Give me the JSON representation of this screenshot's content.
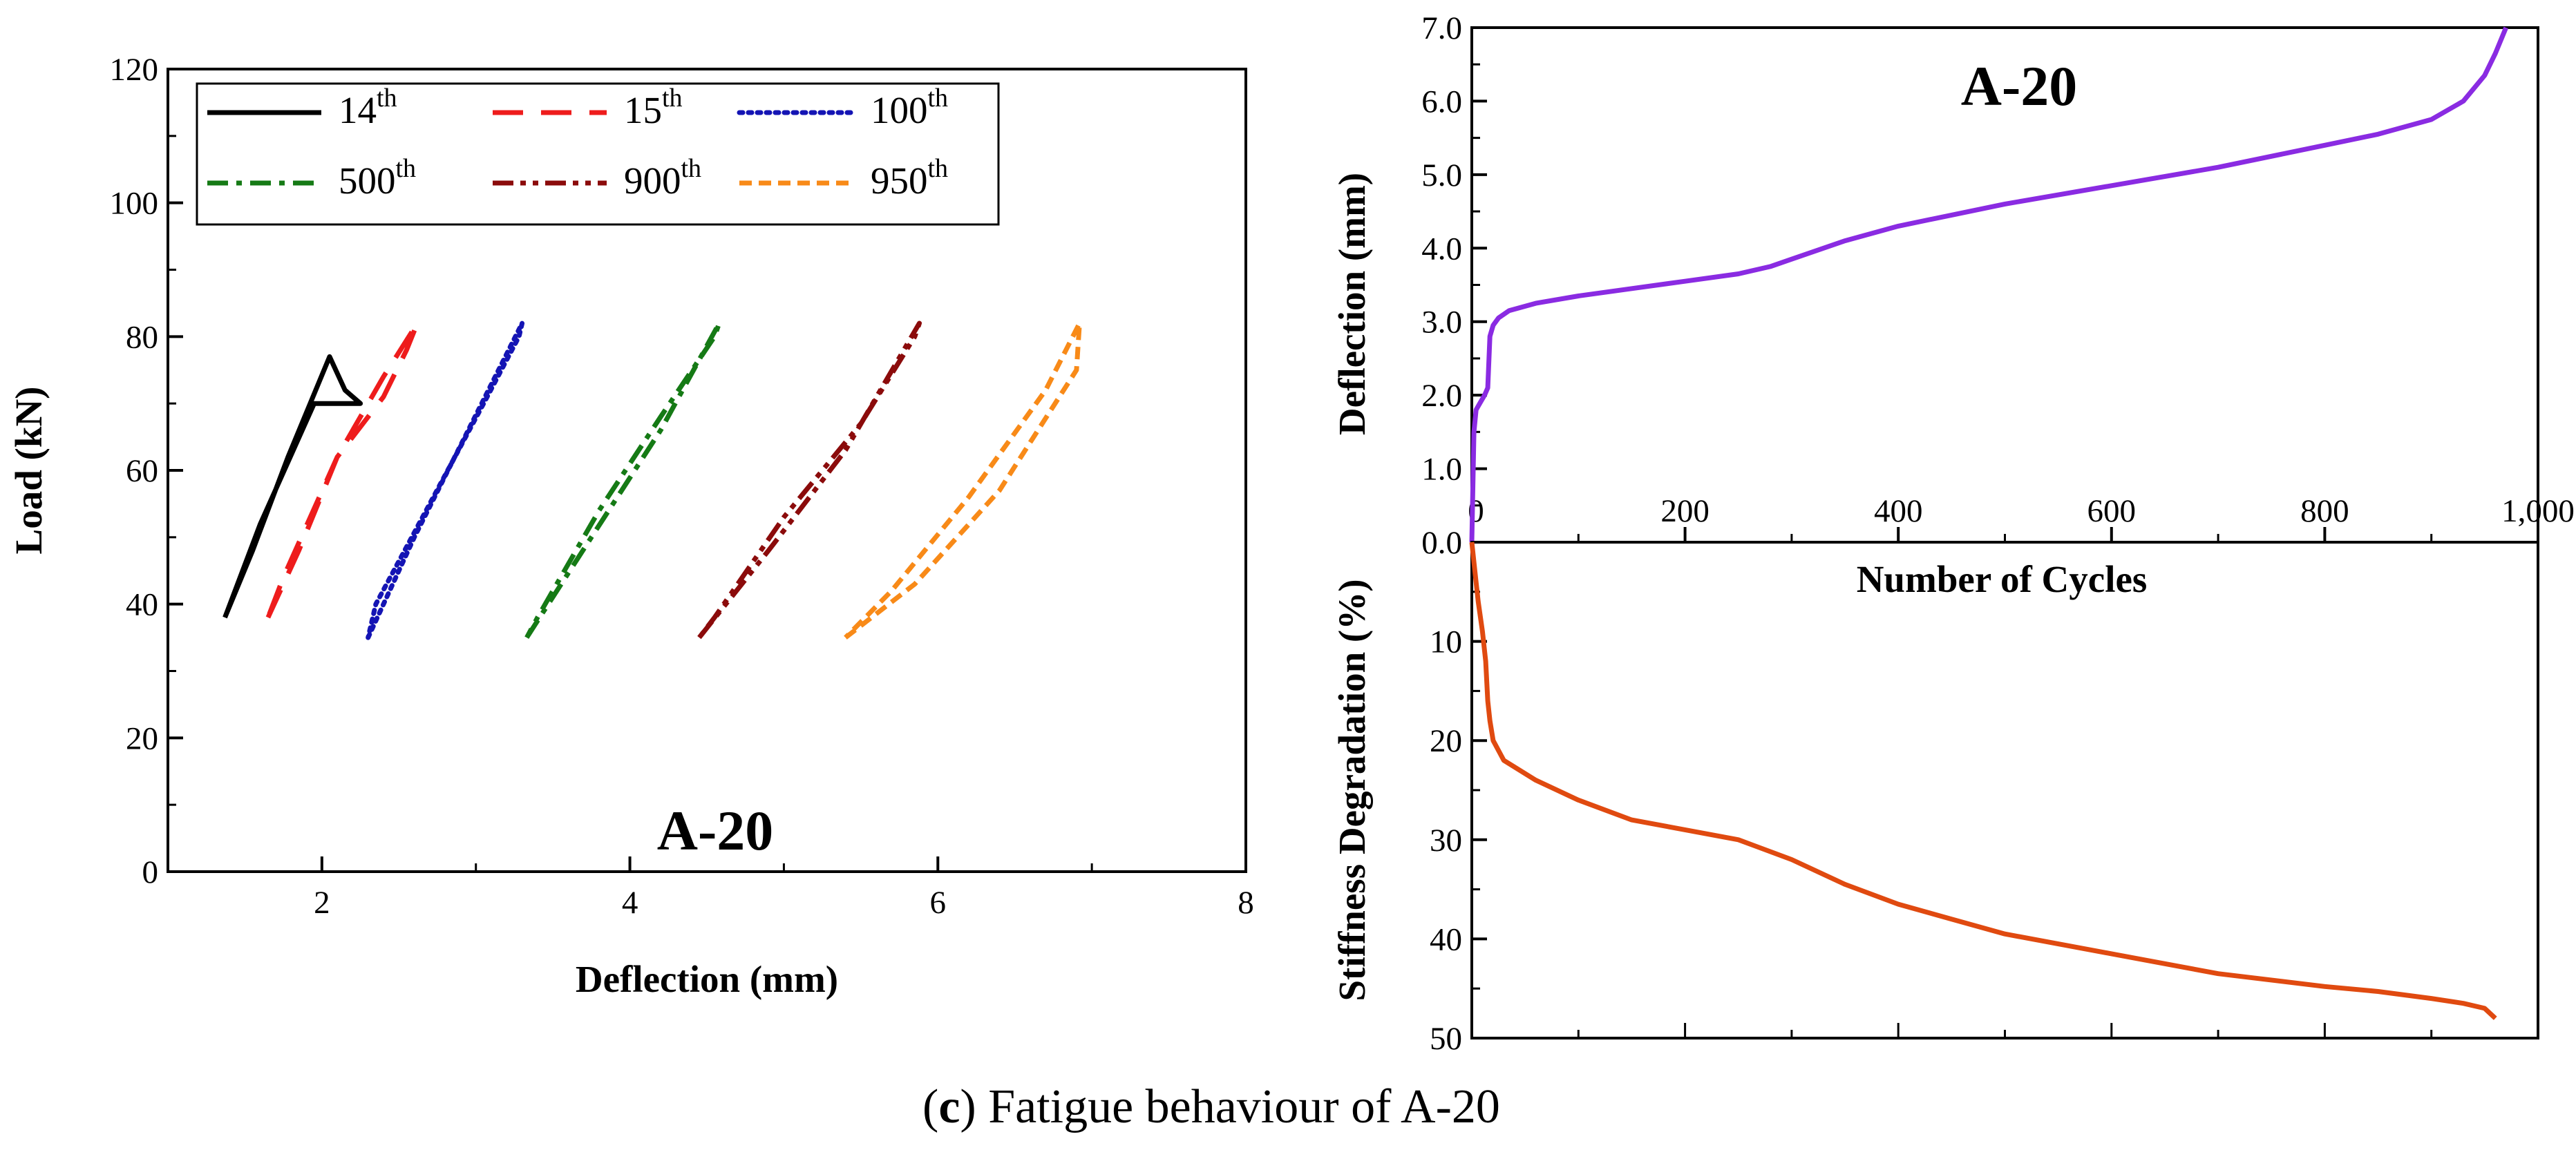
{
  "caption": {
    "letter": "c",
    "text": "Fatigue behaviour of A-20"
  },
  "chart_data": [
    {
      "type": "line",
      "title": "A-20",
      "xlabel": "Deflection (mm)",
      "ylabel": "Load (kN)",
      "xlim": [
        1,
        8
      ],
      "ylim": [
        0,
        120
      ],
      "xticks": [
        "2",
        "4",
        "6",
        "8"
      ],
      "yticks": [
        "0",
        "20",
        "40",
        "60",
        "80",
        "100",
        "120"
      ],
      "grid": false,
      "legend": "top-left",
      "series": [
        {
          "name": "14th",
          "label": "14",
          "sup": "th",
          "color": "#000000",
          "dash": "solid",
          "x": [
            1.37,
            1.55,
            1.78,
            2.05,
            2.15,
            2.25,
            2.22,
            1.95,
            1.6,
            1.37
          ],
          "y": [
            38,
            48,
            62,
            77,
            72,
            70,
            70,
            70,
            52,
            38
          ]
        },
        {
          "name": "15th",
          "label": "15",
          "sup": "th",
          "color": "#ee1c1c",
          "dash": "long-dash",
          "x": [
            1.65,
            1.85,
            2.1,
            2.3,
            2.4,
            2.62,
            2.55,
            2.4,
            2.1,
            1.75,
            1.65
          ],
          "y": [
            38,
            48,
            62,
            70,
            74,
            82,
            78,
            71,
            62,
            44,
            38
          ]
        },
        {
          "name": "100th",
          "label": "100",
          "sup": "th",
          "color": "#1414b4",
          "dash": "dotted",
          "x": [
            2.3,
            2.6,
            2.95,
            3.3,
            3.28,
            3.05,
            2.7,
            2.35,
            2.3
          ],
          "y": [
            35,
            50,
            66,
            82,
            80,
            70,
            55,
            40,
            35
          ]
        },
        {
          "name": "500th",
          "label": "500",
          "sup": "th",
          "color": "#157a15",
          "dash": "dash-dot",
          "x": [
            3.33,
            3.75,
            4.2,
            4.58,
            4.55,
            4.2,
            3.8,
            3.4,
            3.33
          ],
          "y": [
            35,
            50,
            66,
            82,
            80,
            68,
            54,
            38,
            35
          ]
        },
        {
          "name": "900th",
          "label": "900",
          "sup": "th",
          "color": "#8b0b0b",
          "dash": "dash-dot-dot",
          "x": [
            4.45,
            4.9,
            5.4,
            5.88,
            5.85,
            5.5,
            5.0,
            4.55,
            4.45
          ],
          "y": [
            35,
            48,
            63,
            82,
            80,
            67,
            53,
            38,
            35
          ]
        },
        {
          "name": "950th",
          "label": "950",
          "sup": "th",
          "color": "#f88a18",
          "dash": "short-dash",
          "x": [
            5.4,
            5.85,
            6.4,
            6.9,
            6.92,
            6.7,
            6.2,
            5.7,
            5.4
          ],
          "y": [
            35,
            43,
            57,
            75,
            82,
            72,
            56,
            42,
            35
          ]
        }
      ]
    },
    {
      "type": "line",
      "title": "A-20",
      "xlabel": "Number of Cycles",
      "ylabel": "Deflection (mm)",
      "xlim": [
        0,
        1000
      ],
      "ylim": [
        0,
        7
      ],
      "xticks": [
        "0",
        "200",
        "400",
        "600",
        "800",
        "1,000"
      ],
      "yticks": [
        "0.0",
        "1.0",
        "2.0",
        "3.0",
        "4.0",
        "5.0",
        "6.0",
        "7.0"
      ],
      "grid": false,
      "series": [
        {
          "color": "#8a2be2",
          "x": [
            0,
            2,
            4,
            8,
            12,
            15,
            17,
            20,
            25,
            35,
            60,
            100,
            150,
            200,
            250,
            280,
            300,
            350,
            400,
            450,
            500,
            600,
            700,
            800,
            850,
            900,
            930,
            950,
            960,
            970
          ],
          "y": [
            0,
            1.5,
            1.8,
            1.9,
            2.0,
            2.1,
            2.8,
            2.95,
            3.05,
            3.15,
            3.25,
            3.35,
            3.45,
            3.55,
            3.65,
            3.75,
            3.85,
            4.1,
            4.3,
            4.45,
            4.6,
            4.85,
            5.1,
            5.4,
            5.55,
            5.75,
            6.0,
            6.35,
            6.65,
            7.0
          ]
        }
      ]
    },
    {
      "type": "line",
      "title": "",
      "xlabel": "",
      "ylabel": "Stiffness Degradation (%)",
      "xlim": [
        0,
        1000
      ],
      "ylim": [
        50,
        0
      ],
      "yticks": [
        "10",
        "20",
        "30",
        "40",
        "50"
      ],
      "grid": false,
      "series": [
        {
          "color": "#e04a10",
          "x": [
            0,
            3,
            6,
            10,
            13,
            15,
            17,
            20,
            30,
            60,
            100,
            150,
            200,
            250,
            300,
            350,
            400,
            450,
            500,
            600,
            700,
            800,
            850,
            900,
            930,
            950,
            960
          ],
          "y": [
            0,
            3,
            6,
            9,
            12,
            16,
            18,
            20,
            22,
            24,
            26,
            28,
            29,
            30,
            32,
            34.5,
            36.5,
            38,
            39.5,
            41.5,
            43.5,
            44.8,
            45.3,
            46,
            46.5,
            47,
            48
          ]
        }
      ]
    }
  ]
}
